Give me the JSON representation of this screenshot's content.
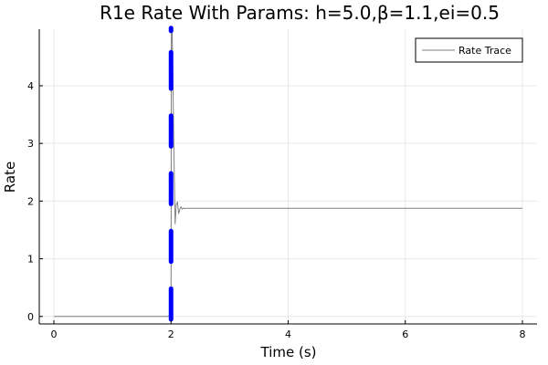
{
  "chart_data": {
    "type": "line",
    "title": "R1e Rate With Params: h=5.0,β=1.1,ei=0.5",
    "xlabel": "Time (s)",
    "ylabel": "Rate",
    "xlim": [
      -0.25,
      8.25
    ],
    "ylim": [
      -0.13,
      4.98
    ],
    "xticks": [
      0,
      2,
      4,
      6,
      8
    ],
    "yticks": [
      0,
      1,
      2,
      3,
      4
    ],
    "grid": true,
    "legend": {
      "position": "top-right",
      "entries": [
        "Rate Trace"
      ]
    },
    "series": [
      {
        "name": "Rate Trace",
        "color": "#808080",
        "x": [
          0,
          1.99,
          2.0,
          2.005,
          2.01,
          2.02,
          2.03,
          2.05,
          2.07,
          2.09,
          2.11,
          2.13,
          2.15,
          2.17,
          2.19,
          2.21,
          2.23,
          2.26,
          2.3,
          2.4,
          8
        ],
        "y": [
          0,
          0,
          0,
          4.8,
          5.0,
          4.9,
          4.2,
          2.8,
          1.6,
          1.95,
          1.98,
          1.78,
          1.86,
          1.9,
          1.86,
          1.88,
          1.87,
          1.875,
          1.875,
          1.875,
          1.875
        ]
      }
    ],
    "overlay": {
      "type": "dashed-vertical-line",
      "x": 2.0,
      "color": "#0000ff",
      "segments": [
        [
          -0.05,
          0.48
        ],
        [
          0.95,
          1.48
        ],
        [
          1.95,
          2.48
        ],
        [
          2.95,
          3.48
        ],
        [
          3.95,
          4.58
        ],
        [
          4.95,
          5.0
        ]
      ]
    }
  }
}
